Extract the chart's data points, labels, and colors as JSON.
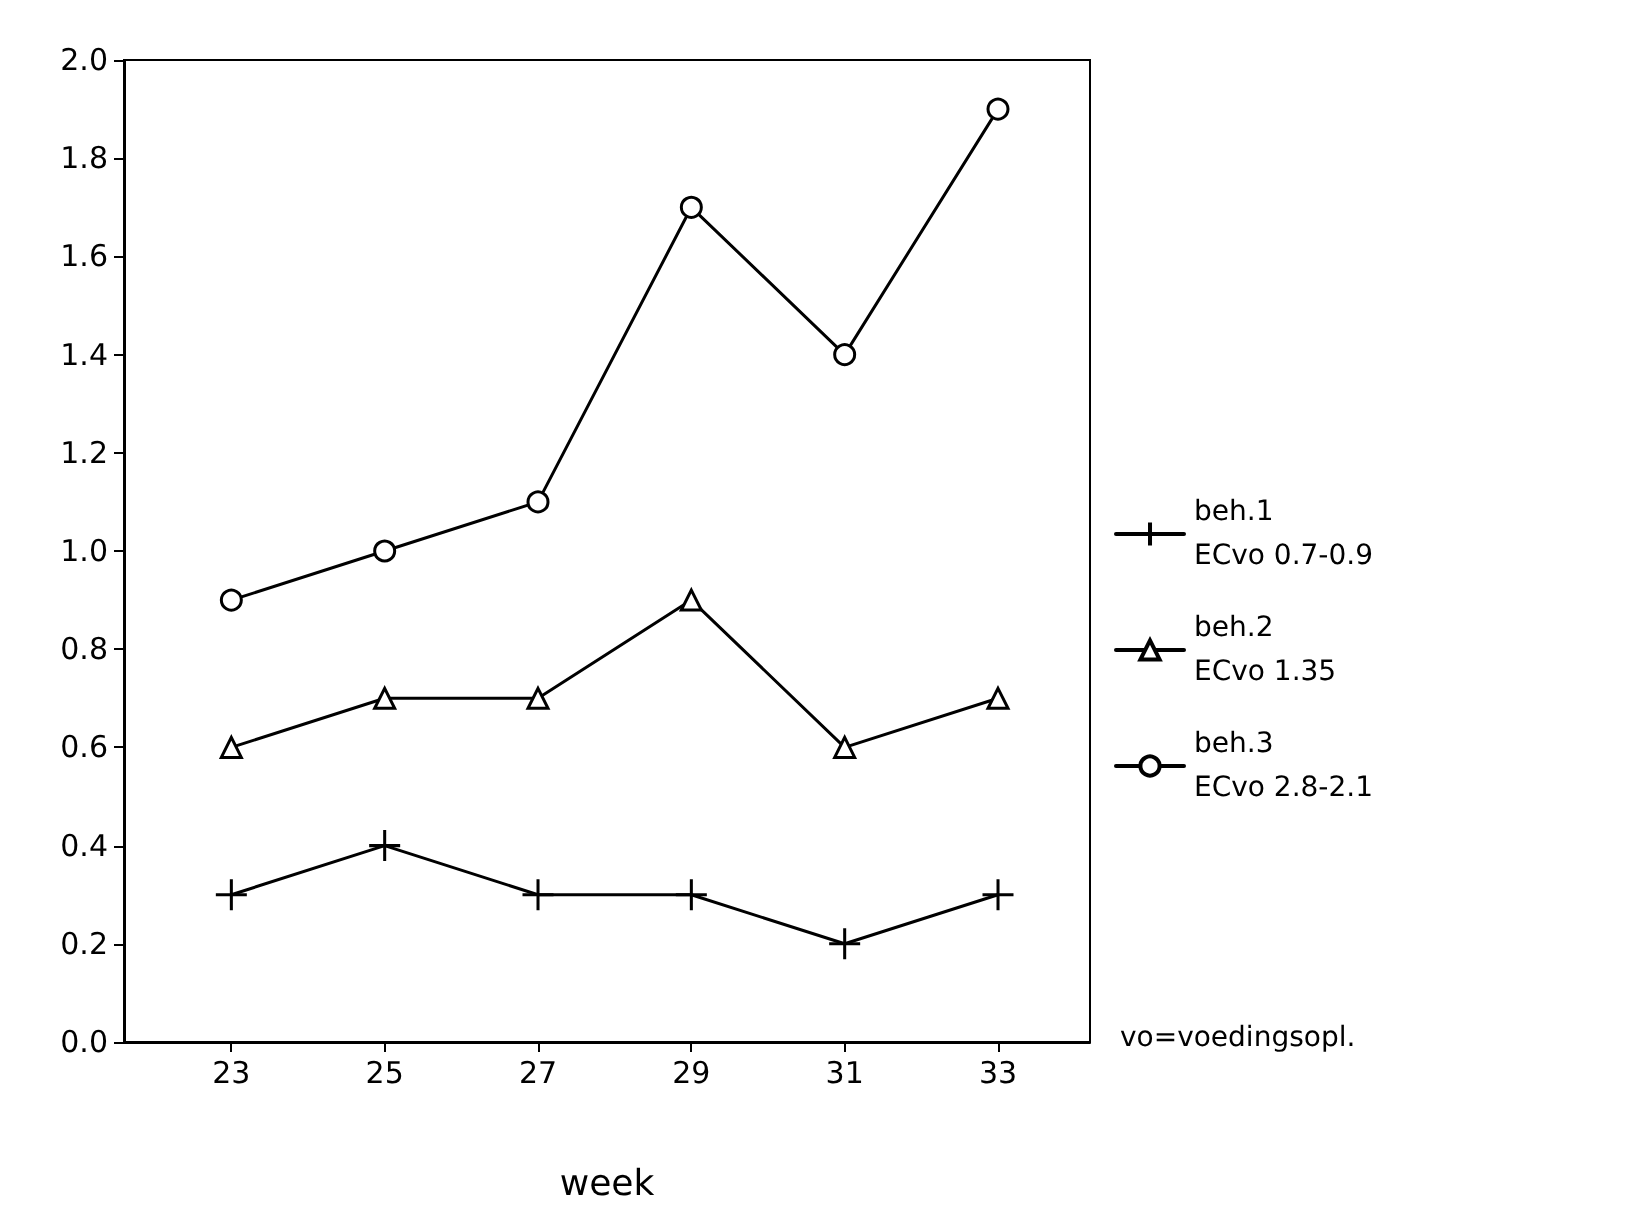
{
  "chart_data": {
    "type": "line",
    "xlabel": "week",
    "x": [
      23,
      25,
      27,
      29,
      31,
      33
    ],
    "xlim": [
      21.6,
      34.2
    ],
    "xticks": [
      23,
      25,
      27,
      29,
      31,
      33
    ],
    "ylim": [
      0,
      2
    ],
    "yticks": [
      {
        "value": 0,
        "label": "0.0"
      },
      {
        "value": 0.2,
        "label": "0.2"
      },
      {
        "value": 0.4,
        "label": "0.4"
      },
      {
        "value": 0.6,
        "label": "0.6"
      },
      {
        "value": 0.8,
        "label": "0.8"
      },
      {
        "value": 1,
        "label": "1.0"
      },
      {
        "value": 1.2,
        "label": "1.2"
      },
      {
        "value": 1.4,
        "label": "1.4"
      },
      {
        "value": 1.6,
        "label": "1.6"
      },
      {
        "value": 1.8,
        "label": "1.8"
      },
      {
        "value": 2,
        "label": "2.0"
      }
    ],
    "series": [
      {
        "name": "beh.1\nECvo 0.7-0.9",
        "color": "#000000",
        "marker": "cross",
        "values": [
          0.3,
          0.4,
          0.3,
          0.3,
          0.2,
          0.3
        ]
      },
      {
        "name": "beh.2\nECvo 1.35",
        "color": "#000000",
        "marker": "triangle",
        "values": [
          0.6,
          0.7,
          0.7,
          0.9,
          0.6,
          0.7
        ]
      },
      {
        "name": "beh.3\nECvo 2.8-2.1",
        "color": "#000000",
        "marker": "circle",
        "values": [
          0.9,
          1.0,
          1.1,
          1.7,
          1.4,
          1.9
        ]
      }
    ],
    "annotations": [
      "vo=voedingsopl."
    ],
    "legend": "right",
    "grid": false,
    "line_style": "solid"
  }
}
